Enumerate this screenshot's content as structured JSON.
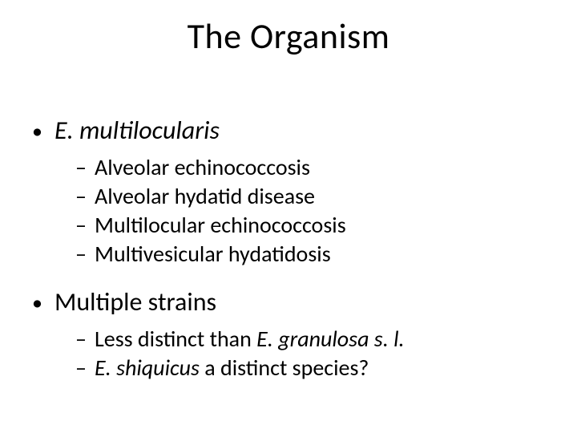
{
  "type": "slide",
  "background_color": "#ffffff",
  "text_color": "#000000",
  "font_family": "Calibri",
  "title": {
    "text": "The Organism",
    "fontsize": 44,
    "align": "center"
  },
  "body": {
    "items": [
      {
        "level": 1,
        "bullet": "•",
        "fontsize": 32,
        "italic": true,
        "text": "E. multilocularis"
      },
      {
        "level": 2,
        "bullet": "–",
        "fontsize": 28,
        "text": "Alveolar echinococcosis"
      },
      {
        "level": 2,
        "bullet": "–",
        "fontsize": 28,
        "text": "Alveolar hydatid disease"
      },
      {
        "level": 2,
        "bullet": "–",
        "fontsize": 28,
        "text": "Multilocular echinococcosis"
      },
      {
        "level": 2,
        "bullet": "–",
        "fontsize": 28,
        "text": "Multivesicular hydatidosis"
      },
      {
        "level": 1,
        "bullet": "•",
        "fontsize": 32,
        "italic": false,
        "text": "Multiple strains"
      },
      {
        "level": 2,
        "bullet": "–",
        "fontsize": 28,
        "segments": [
          {
            "text": "Less distinct than ",
            "italic": false
          },
          {
            "text": "E. granulosa s. l.",
            "italic": true
          }
        ]
      },
      {
        "level": 2,
        "bullet": "–",
        "fontsize": 28,
        "segments": [
          {
            "text": "E. shiquicus",
            "italic": true
          },
          {
            "text": " a distinct species?",
            "italic": false
          }
        ]
      }
    ]
  }
}
